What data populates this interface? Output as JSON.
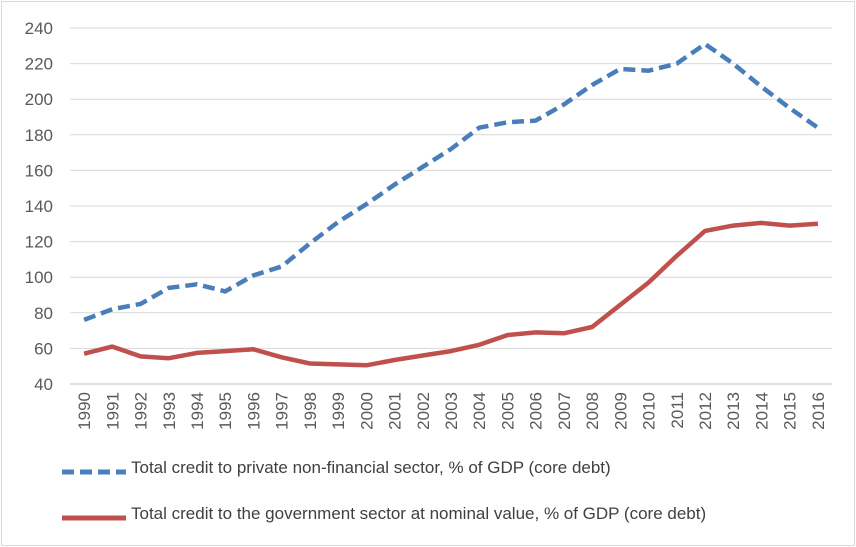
{
  "chart_data": {
    "type": "line",
    "title": "",
    "xlabel": "",
    "ylabel": "",
    "ylim": [
      40,
      240
    ],
    "yticks": [
      40,
      60,
      80,
      100,
      120,
      140,
      160,
      180,
      200,
      220,
      240
    ],
    "grid": true,
    "legend_position": "bottom",
    "categories": [
      "1990",
      "1991",
      "1992",
      "1993",
      "1994",
      "1995",
      "1996",
      "1997",
      "1998",
      "1999",
      "2000",
      "2001",
      "2002",
      "2003",
      "2004",
      "2005",
      "2006",
      "2007",
      "2008",
      "2009",
      "2010",
      "2011",
      "2012",
      "2013",
      "2014",
      "2015",
      "2016"
    ],
    "series": [
      {
        "name": "Total credit to private non-financial sector, % of GDP (core debt)",
        "color": "#4a7ebb",
        "dash": "dashed",
        "values": [
          76,
          82,
          85,
          94,
          96,
          92,
          101,
          106,
          119,
          131,
          141,
          152,
          162,
          172,
          184,
          187,
          188,
          197,
          208,
          217,
          216,
          220,
          231,
          220,
          207,
          195,
          184
        ]
      },
      {
        "name": "Total credit to the government sector at nominal value, % of GDP (core debt)",
        "color": "#c0504d",
        "dash": "solid",
        "values": [
          57,
          61,
          55.5,
          54.5,
          57.5,
          58.5,
          59.5,
          55,
          51.5,
          51,
          50.5,
          53.5,
          56,
          58.5,
          62,
          67.5,
          69,
          68.5,
          72,
          84.5,
          97,
          112,
          126,
          129,
          130.5,
          129,
          130
        ]
      }
    ]
  }
}
